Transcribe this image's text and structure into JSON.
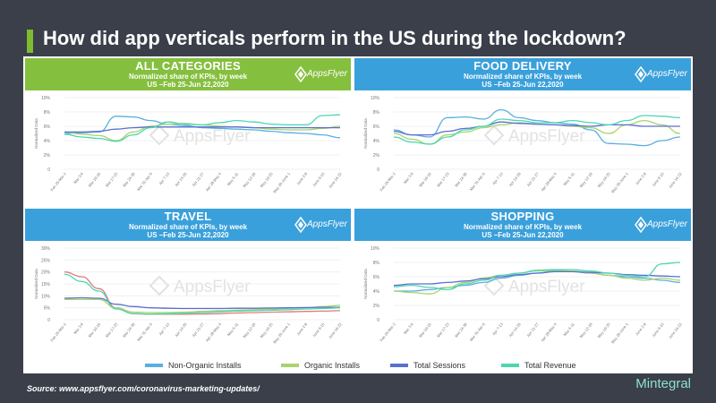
{
  "page": {
    "title": "How did app verticals perform in the US during the lockdown?",
    "source": "Source: www.appsflyer.com/coronavirus-marketing-updates/",
    "brand": "Mintegral",
    "logo_text": "AppsFlyer",
    "watermark": "AppsFlyer"
  },
  "legend": [
    {
      "name": "Non-Organic Installs",
      "color": "#5aaee0"
    },
    {
      "name": "Organic Installs",
      "color": "#a9d46b"
    },
    {
      "name": "Total Sessions",
      "color": "#5b6fd0"
    },
    {
      "name": "Total Revenue",
      "color": "#4dd6b0"
    }
  ],
  "chart_data": [
    {
      "type": "line",
      "title": "ALL CATEGORIES",
      "subtitle": "Normalized share of KPIs, by week",
      "subtitle2": "US –Feb 25-Jun 22,2020",
      "header_color": "#85bf3e",
      "ylabel": "Normalized Data",
      "ylim": [
        0,
        10
      ],
      "yticks": [
        "0",
        "2%",
        "4%",
        "6%",
        "8%",
        "10%"
      ],
      "categories": [
        "Feb 25-Mar 2",
        "Mar 3-9",
        "Mar 10-16",
        "Mar 17-23",
        "Mar 24-30",
        "Mar 31-Apr 6",
        "Apr 7-13",
        "Apr 14-20",
        "Apr 21-27",
        "Apr 28-May 4",
        "May 5-11",
        "May 12-18",
        "May 19-25",
        "May 26-June 1",
        "June 2-8",
        "June 9-15",
        "June 16-22"
      ],
      "series": [
        {
          "name": "Non-Organic Installs",
          "color": "#5aaee0",
          "values": [
            5.0,
            5.1,
            5.2,
            7.4,
            7.3,
            6.8,
            6.3,
            6.1,
            5.8,
            5.7,
            5.6,
            5.5,
            5.3,
            5.1,
            5.0,
            4.8,
            4.4
          ]
        },
        {
          "name": "Organic Installs",
          "color": "#a9d46b",
          "values": [
            5.2,
            4.9,
            4.7,
            4.0,
            5.2,
            6.0,
            6.3,
            6.4,
            6.2,
            6.0,
            5.9,
            5.8,
            5.6,
            5.5,
            5.5,
            5.7,
            6.0
          ]
        },
        {
          "name": "Total Sessions",
          "color": "#5b6fd0",
          "values": [
            5.2,
            5.2,
            5.3,
            5.6,
            5.8,
            5.9,
            5.9,
            5.9,
            5.9,
            5.9,
            5.9,
            5.8,
            5.8,
            5.8,
            5.8,
            5.8,
            5.8
          ]
        },
        {
          "name": "Total Revenue",
          "color": "#4dd6b0",
          "values": [
            4.9,
            4.5,
            4.3,
            3.9,
            4.8,
            5.8,
            6.6,
            6.3,
            6.2,
            6.5,
            6.8,
            6.6,
            6.3,
            6.2,
            6.2,
            7.5,
            7.6
          ]
        }
      ]
    },
    {
      "type": "line",
      "title": "FOOD DELIVERY",
      "subtitle": "Normalized share of KPIs, by week",
      "subtitle2": "US –Feb 25-Jun 22,2020",
      "header_color": "#3aa0db",
      "ylabel": "Normalized Data",
      "ylim": [
        0,
        10
      ],
      "yticks": [
        "0",
        "2%",
        "4%",
        "6%",
        "8%",
        "10%"
      ],
      "categories": [
        "Feb 25-Mar 2",
        "Mar 3-9",
        "Mar 10-16",
        "Mar 17-23",
        "Mar 24-30",
        "Mar 31-Apr 6",
        "Apr 7-13",
        "Apr 14-20",
        "Apr 21-27",
        "Apr 28-May 4",
        "May 5-11",
        "May 12-18",
        "May 19-25",
        "May 26-June 1",
        "June 2-8",
        "June 9-15",
        "June 16-22"
      ],
      "series": [
        {
          "name": "Non-Organic Installs",
          "color": "#5aaee0",
          "values": [
            5.5,
            4.8,
            4.5,
            7.2,
            7.3,
            7.0,
            8.3,
            7.2,
            6.8,
            6.5,
            6.3,
            5.5,
            3.6,
            3.5,
            3.3,
            4.0,
            4.5
          ]
        },
        {
          "name": "Organic Installs",
          "color": "#a9d46b",
          "values": [
            5.0,
            4.2,
            3.5,
            4.8,
            5.2,
            5.8,
            6.2,
            6.5,
            6.3,
            6.2,
            6.0,
            5.8,
            5.0,
            6.2,
            6.8,
            6.2,
            5.0
          ]
        },
        {
          "name": "Total Sessions",
          "color": "#5b6fd0",
          "values": [
            5.3,
            4.8,
            4.8,
            5.3,
            5.7,
            6.0,
            6.6,
            6.4,
            6.3,
            6.2,
            6.1,
            6.0,
            6.2,
            6.2,
            6.0,
            6.0,
            6.0
          ]
        },
        {
          "name": "Total Revenue",
          "color": "#4dd6b0",
          "values": [
            4.5,
            3.8,
            3.5,
            4.5,
            5.5,
            6.0,
            7.0,
            6.8,
            6.5,
            6.5,
            6.8,
            6.5,
            6.2,
            6.8,
            7.5,
            7.4,
            7.2
          ]
        }
      ]
    },
    {
      "type": "line",
      "title": "TRAVEL",
      "subtitle": "Normalized share of KPIs, by week",
      "subtitle2": "US –Feb 25-Jun 22,2020",
      "header_color": "#3aa0db",
      "ylabel": "Normalized Data",
      "ylim": [
        0,
        30
      ],
      "yticks": [
        "0",
        "5%",
        "10%",
        "15%",
        "20%",
        "25%",
        "30%"
      ],
      "categories": [
        "Feb 25-Mar 2",
        "Mar 3-9",
        "Mar 10-16",
        "Mar 17-23",
        "Mar 24-30",
        "Mar 31-Apr 6",
        "Apr 7-13",
        "Apr 14-20",
        "Apr 21-27",
        "Apr 28-May 4",
        "May 5-11",
        "May 12-18",
        "May 19-25",
        "May 26-June 1",
        "June 2-8",
        "June 9-15",
        "June 16-22"
      ],
      "series": [
        {
          "name": "Non-Organic Installs",
          "color": "#e07a7a",
          "values": [
            20.0,
            18.0,
            13.0,
            5.0,
            2.5,
            2.3,
            2.3,
            2.3,
            2.4,
            2.5,
            2.8,
            3.0,
            3.2,
            3.3,
            3.5,
            3.6,
            3.8
          ]
        },
        {
          "name": "Organic Installs",
          "color": "#a9d46b",
          "values": [
            8.5,
            8.5,
            8.5,
            5.0,
            3.2,
            3.0,
            3.0,
            3.2,
            3.5,
            3.8,
            4.0,
            4.2,
            4.5,
            4.8,
            5.0,
            5.5,
            6.0
          ]
        },
        {
          "name": "Total Sessions",
          "color": "#5b6fd0",
          "values": [
            9.0,
            9.2,
            9.0,
            6.5,
            5.5,
            5.0,
            4.8,
            4.7,
            4.7,
            4.7,
            4.8,
            4.8,
            4.9,
            5.0,
            5.1,
            5.2,
            5.2
          ]
        },
        {
          "name": "Total Revenue",
          "color": "#4dd6b0",
          "values": [
            19.0,
            16.0,
            12.0,
            4.5,
            2.6,
            2.4,
            2.5,
            2.7,
            3.0,
            3.3,
            3.6,
            3.8,
            4.0,
            4.2,
            4.5,
            4.7,
            5.0
          ]
        }
      ]
    },
    {
      "type": "line",
      "title": "SHOPPING",
      "subtitle": "Normalized share of KPIs, by week",
      "subtitle2": "US –Feb 25-Jun 22,2020",
      "header_color": "#3aa0db",
      "ylabel": "Normalized Data",
      "ylim": [
        0,
        10
      ],
      "yticks": [
        "0",
        "2%",
        "4%",
        "6%",
        "8%",
        "10%"
      ],
      "categories": [
        "Feb 25-Mar 2",
        "Mar 3-9",
        "Mar 10-16",
        "Mar 17-23",
        "Mar 24-30",
        "Mar 31-Apr 6",
        "Apr 7-13",
        "Apr 14-20",
        "Apr 21-27",
        "Apr 28-May 4",
        "May 5-11",
        "May 12-18",
        "May 19-25",
        "May 26-June 1",
        "June 2-8",
        "June 9-15",
        "June 16-22"
      ],
      "series": [
        {
          "name": "Non-Organic Installs",
          "color": "#5aaee0",
          "values": [
            4.0,
            4.0,
            4.2,
            4.5,
            4.8,
            5.2,
            5.8,
            6.2,
            6.5,
            6.8,
            6.7,
            6.5,
            6.2,
            6.0,
            5.8,
            5.5,
            5.2
          ]
        },
        {
          "name": "Organic Installs",
          "color": "#a9d46b",
          "values": [
            4.0,
            3.8,
            3.6,
            4.5,
            5.2,
            5.8,
            6.2,
            6.5,
            6.8,
            6.9,
            6.8,
            6.5,
            6.2,
            5.8,
            5.5,
            5.8,
            5.5
          ]
        },
        {
          "name": "Total Sessions",
          "color": "#5b6fd0",
          "values": [
            4.8,
            5.0,
            5.0,
            5.2,
            5.4,
            5.7,
            6.0,
            6.3,
            6.5,
            6.7,
            6.7,
            6.6,
            6.5,
            6.3,
            6.2,
            6.1,
            6.0
          ]
        },
        {
          "name": "Total Revenue",
          "color": "#4dd6b0",
          "values": [
            4.6,
            4.8,
            4.5,
            4.2,
            5.0,
            5.5,
            6.2,
            6.5,
            6.9,
            7.0,
            7.0,
            6.8,
            6.5,
            6.2,
            6.0,
            7.8,
            8.0
          ]
        }
      ]
    }
  ]
}
